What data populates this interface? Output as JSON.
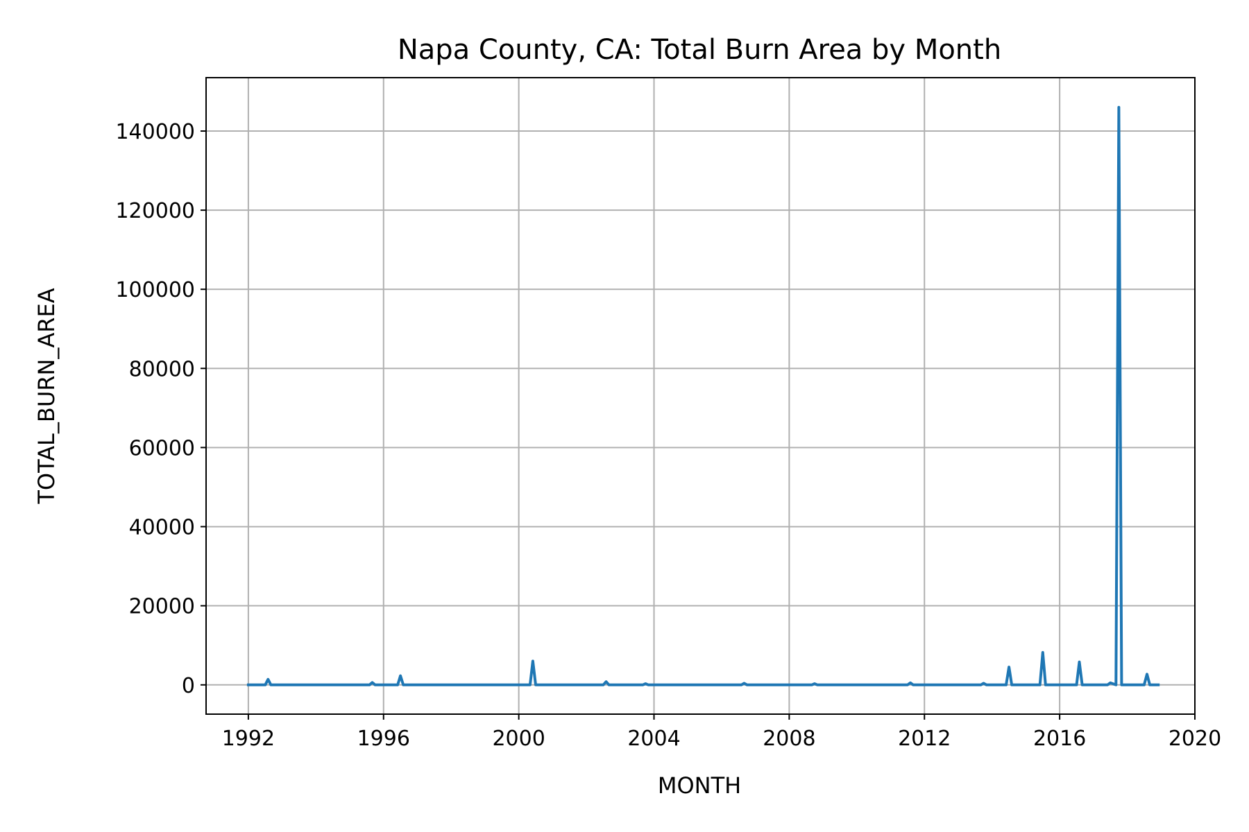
{
  "chart_data": {
    "type": "line",
    "title": "Napa County, CA: Total Burn Area by Month",
    "xlabel": "MONTH",
    "ylabel": "TOTAL_BURN_AREA",
    "x_ticks": [
      "1992",
      "1996",
      "2000",
      "2004",
      "2008",
      "2012",
      "2016",
      "2020"
    ],
    "y_ticks": [
      "0",
      "20000",
      "40000",
      "60000",
      "80000",
      "100000",
      "120000",
      "140000"
    ],
    "xlim": [
      "1990-10",
      "2020-01"
    ],
    "ylim": [
      -7400,
      153500
    ],
    "grid": true,
    "series_color": "#1f77b4",
    "series": [
      {
        "x": [
          "1992-01",
          "1992-07",
          "1992-08",
          "1992-09",
          "1995-08",
          "1995-09",
          "1995-10",
          "1996-06",
          "1996-07",
          "1996-08",
          "2000-05",
          "2000-06",
          "2000-07",
          "2002-07",
          "2002-08",
          "2002-09",
          "2003-09",
          "2003-10",
          "2003-11",
          "2006-08",
          "2006-09",
          "2006-10",
          "2008-09",
          "2008-10",
          "2008-11",
          "2011-07",
          "2011-08",
          "2011-09",
          "2013-09",
          "2013-10",
          "2013-11",
          "2014-06",
          "2014-07",
          "2014-08",
          "2015-06",
          "2015-07",
          "2015-08",
          "2016-07",
          "2016-08",
          "2016-09",
          "2017-06",
          "2017-07",
          "2017-09",
          "2017-10",
          "2017-11",
          "2018-07",
          "2018-08",
          "2018-09",
          "2018-12"
        ],
        "values": [
          0,
          0,
          1400,
          0,
          0,
          600,
          0,
          0,
          2300,
          0,
          0,
          6000,
          0,
          0,
          800,
          0,
          0,
          300,
          0,
          0,
          400,
          0,
          0,
          300,
          0,
          0,
          500,
          0,
          0,
          400,
          0,
          0,
          4500,
          0,
          0,
          8200,
          0,
          0,
          5800,
          0,
          0,
          500,
          0,
          146000,
          0,
          0,
          2700,
          0,
          0
        ]
      }
    ]
  }
}
